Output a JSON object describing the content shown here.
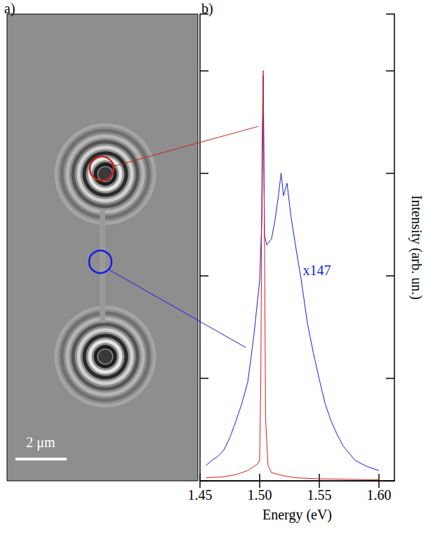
{
  "panel_a": {
    "label": "a)",
    "scale_bar": "2 μm"
  },
  "chart_data": {
    "type": "line",
    "panel_label": "b)",
    "x_label": "Energy (eV)",
    "y_label": "Intensity (arb. un.)",
    "xlim": [
      1.45,
      1.613
    ],
    "xticks": [
      1.45,
      {
        "value": 1.5,
        "label": "1.50"
      },
      1.55,
      {
        "value": 1.6,
        "label": "1.60"
      }
    ],
    "ylim": [
      0,
      4.55
    ],
    "yticks": [
      0,
      1,
      2,
      3,
      4
    ],
    "tick_labels": "x",
    "grid": false,
    "series": [
      {
        "color": "#1a1ae6",
        "x": [
          1.455,
          1.46,
          1.465,
          1.47,
          1.475,
          1.48,
          1.485,
          1.49,
          1.495,
          1.5,
          1.502,
          1.503,
          1.504,
          1.506,
          1.51,
          1.513,
          1.516,
          1.518,
          1.52,
          1.523,
          1.526,
          1.53,
          1.535,
          1.54,
          1.545,
          1.55,
          1.555,
          1.56,
          1.565,
          1.57,
          1.58,
          1.59,
          1.6
        ],
        "values": [
          0.15,
          0.2,
          0.24,
          0.3,
          0.42,
          0.58,
          0.75,
          0.96,
          1.4,
          1.95,
          2.6,
          3.95,
          2.4,
          2.3,
          2.36,
          2.55,
          2.8,
          3.0,
          2.78,
          2.9,
          2.6,
          2.3,
          1.95,
          1.54,
          1.25,
          0.99,
          0.75,
          0.58,
          0.45,
          0.34,
          0.2,
          0.14,
          0.1
        ]
      },
      {
        "color": "#cc2020",
        "x": [
          1.455,
          1.47,
          1.48,
          1.49,
          1.495,
          1.498,
          1.5,
          1.501,
          1.502,
          1.503,
          1.504,
          1.505,
          1.507,
          1.51,
          1.52,
          1.53,
          1.55,
          1.6
        ],
        "values": [
          0.03,
          0.04,
          0.06,
          0.1,
          0.14,
          0.16,
          0.2,
          1.0,
          3.2,
          4.0,
          2.5,
          0.6,
          0.15,
          0.08,
          0.05,
          0.03,
          0.02,
          0.01
        ]
      }
    ],
    "annotations": [
      {
        "text": "x147",
        "x": 1.548,
        "y": 2.05,
        "color": "#1a1ae6"
      }
    ]
  }
}
